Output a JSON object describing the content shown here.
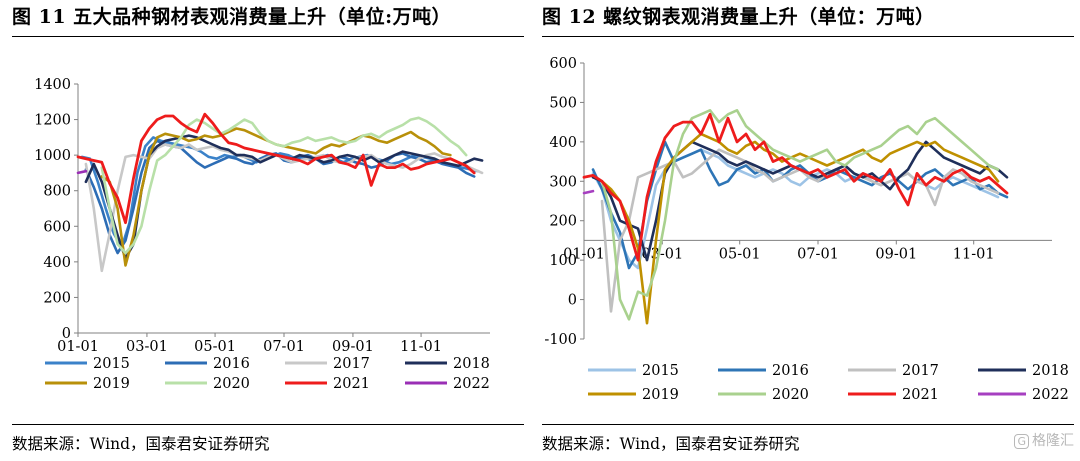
{
  "watermark": "格隆汇",
  "watermark_icon": "G",
  "source_note": "数据来源：Wind，国泰君安证券研究",
  "chart_data": [
    {
      "type": "line",
      "title": "图 11 五大品种钢材表观消费量上升（单位:万吨）",
      "xlabel": "",
      "ylabel": "",
      "ylim": [
        0,
        1400
      ],
      "yticks": [
        0,
        200,
        400,
        600,
        800,
        1000,
        1200,
        1400
      ],
      "xlim": [
        0,
        52
      ],
      "xticks": [
        {
          "x": 0,
          "label": "01-01"
        },
        {
          "x": 8.7,
          "label": "03-01"
        },
        {
          "x": 17.3,
          "label": "05-01"
        },
        {
          "x": 26,
          "label": "07-01"
        },
        {
          "x": 34.7,
          "label": "09-01"
        },
        {
          "x": 43.3,
          "label": "11-01"
        }
      ],
      "xaxis_value": 0,
      "legend_position": "bottom",
      "grid": false,
      "series": [
        {
          "name": "2015",
          "color": "#3b82c9",
          "width": 2.6,
          "x0": 0.5,
          "values": [
            990,
            980,
            850,
            700,
            560,
            480,
            620,
            900,
            1050,
            1100,
            1080,
            1070,
            1060,
            1050,
            1040,
            1020,
            990,
            980,
            1000,
            990,
            1000,
            980,
            960,
            980,
            990,
            1010,
            1000,
            980,
            990,
            970,
            990,
            1000,
            980,
            960,
            980,
            990,
            1000,
            980,
            970,
            950,
            960,
            980,
            1000,
            990,
            980,
            960,
            950,
            940,
            930,
            920,
            910
          ]
        },
        {
          "name": "2016",
          "color": "#2d6db5",
          "width": 2.6,
          "x0": 1,
          "values": [
            920,
            820,
            700,
            550,
            450,
            520,
            700,
            900,
            1040,
            1080,
            1060,
            1050,
            1040,
            1000,
            960,
            930,
            950,
            970,
            990,
            980,
            960,
            950,
            980,
            1000,
            1010,
            970,
            960,
            990,
            1000,
            980,
            950,
            960,
            990,
            980,
            960,
            950,
            930,
            940,
            970,
            1000,
            1010,
            990,
            980,
            960,
            970,
            950,
            940,
            930,
            900,
            880
          ]
        },
        {
          "name": "2017",
          "color": "#c8c8c8",
          "width": 2.6,
          "x0": 1,
          "values": [
            950,
            700,
            350,
            560,
            800,
            990,
            1000,
            990,
            980,
            1040,
            1060,
            1050,
            1040,
            1060,
            1030,
            1040,
            1050,
            1030,
            1020,
            1000,
            990,
            980,
            970,
            990,
            1000,
            980,
            960,
            970,
            980,
            990,
            1000,
            970,
            960,
            950,
            980,
            990,
            1000,
            970,
            950,
            940,
            930,
            950,
            980,
            1000,
            1010,
            990,
            980,
            960,
            940,
            920,
            900
          ]
        },
        {
          "name": "2018",
          "color": "#1f2f5a",
          "width": 2.6,
          "x0": 1,
          "values": [
            850,
            950,
            850,
            700,
            550,
            420,
            500,
            800,
            1000,
            1050,
            1080,
            1090,
            1100,
            1110,
            1100,
            1080,
            1060,
            1040,
            1030,
            1000,
            1000,
            990,
            960,
            980,
            1000,
            990,
            980,
            1000,
            990,
            980,
            960,
            970,
            990,
            1000,
            990,
            970,
            990,
            960,
            980,
            1000,
            1020,
            1010,
            1000,
            990,
            980,
            960,
            950,
            940,
            960,
            980,
            970
          ]
        },
        {
          "name": "2019",
          "color": "#b8900a",
          "width": 2.6,
          "x0": 3,
          "values": [
            880,
            850,
            700,
            380,
            550,
            800,
            1000,
            1100,
            1120,
            1110,
            1100,
            1080,
            1090,
            1110,
            1100,
            1110,
            1130,
            1150,
            1140,
            1120,
            1100,
            1080,
            1060,
            1050,
            1040,
            1030,
            1020,
            1010,
            1040,
            1060,
            1050,
            1070,
            1090,
            1110,
            1100,
            1080,
            1070,
            1090,
            1110,
            1130,
            1100,
            1080,
            1050,
            1010,
            1000
          ]
        },
        {
          "name": "2020",
          "color": "#b8e0a8",
          "width": 2.6,
          "x0": 3,
          "values": [
            930,
            700,
            500,
            450,
            500,
            600,
            800,
            970,
            1000,
            1050,
            1100,
            1170,
            1200,
            1180,
            1150,
            1120,
            1140,
            1170,
            1200,
            1180,
            1120,
            1080,
            1060,
            1050,
            1070,
            1080,
            1100,
            1080,
            1090,
            1100,
            1080,
            1070,
            1080,
            1110,
            1120,
            1100,
            1130,
            1150,
            1170,
            1200,
            1210,
            1190,
            1160,
            1120,
            1080,
            1050,
            1000
          ]
        },
        {
          "name": "2021",
          "color": "#ee1c1c",
          "width": 2.8,
          "x0": 0,
          "values": [
            990,
            980,
            970,
            960,
            840,
            760,
            620,
            870,
            1080,
            1150,
            1200,
            1220,
            1220,
            1180,
            1150,
            1130,
            1230,
            1180,
            1120,
            1070,
            1060,
            1040,
            1030,
            1020,
            1010,
            1000,
            990,
            980,
            970,
            950,
            980,
            990,
            1000,
            960,
            950,
            930,
            1000,
            830,
            950,
            930,
            930,
            950,
            920,
            930,
            950,
            960,
            970,
            980,
            960,
            940,
            900
          ]
        },
        {
          "name": "2022",
          "color": "#9a2fb5",
          "width": 2.6,
          "x0": 0,
          "values": [
            900,
            910
          ]
        }
      ]
    },
    {
      "type": "line",
      "title": "图 12 螺纹钢表观消费量上升（单位：万吨）",
      "xlabel": "",
      "ylabel": "",
      "ylim": [
        -100,
        600
      ],
      "yticks": [
        -100,
        0,
        100,
        200,
        300,
        400,
        500,
        600
      ],
      "xlim": [
        0,
        52
      ],
      "xticks": [
        {
          "x": 0,
          "label": "01-01"
        },
        {
          "x": 8.7,
          "label": "03-01"
        },
        {
          "x": 17.3,
          "label": "05-01"
        },
        {
          "x": 26,
          "label": "07-01"
        },
        {
          "x": 34.7,
          "label": "09-01"
        },
        {
          "x": 43.3,
          "label": "11-01"
        }
      ],
      "xaxis_value": 150,
      "legend_position": "bottom",
      "grid": false,
      "series": [
        {
          "name": "2015",
          "color": "#9dc3e6",
          "width": 2.6,
          "x0": 1,
          "values": [
            320,
            280,
            200,
            150,
            100,
            80,
            180,
            290,
            330,
            350,
            360,
            370,
            380,
            370,
            360,
            340,
            330,
            320,
            310,
            320,
            330,
            320,
            300,
            290,
            310,
            320,
            330,
            320,
            300,
            310,
            320,
            300,
            290,
            300,
            310,
            320,
            300,
            290,
            280,
            300,
            310,
            300,
            290,
            280,
            270,
            260
          ]
        },
        {
          "name": "2016",
          "color": "#2e75b6",
          "width": 2.6,
          "x0": 1,
          "values": [
            330,
            280,
            220,
            170,
            80,
            120,
            250,
            330,
            400,
            350,
            360,
            370,
            380,
            330,
            290,
            300,
            330,
            340,
            320,
            330,
            300,
            310,
            330,
            340,
            320,
            300,
            310,
            330,
            320,
            310,
            300,
            290,
            310,
            320,
            300,
            280,
            300,
            320,
            330,
            310,
            290,
            300,
            310,
            280,
            290,
            270,
            260
          ]
        },
        {
          "name": "2017",
          "color": "#c0c0c0",
          "width": 2.6,
          "x0": 2,
          "values": [
            250,
            -30,
            150,
            200,
            310,
            320,
            330,
            340,
            350,
            310,
            320,
            340,
            360,
            380,
            370,
            360,
            350,
            330,
            320,
            300,
            310,
            320,
            330,
            310,
            300,
            320,
            330,
            340,
            320,
            310,
            300,
            290,
            300,
            310,
            320,
            300,
            290,
            240,
            310,
            330,
            320,
            300,
            290,
            280,
            270
          ]
        },
        {
          "name": "2018",
          "color": "#1f2f5a",
          "width": 2.6,
          "x0": 1,
          "values": [
            310,
            300,
            260,
            200,
            190,
            180,
            100,
            200,
            320,
            360,
            380,
            400,
            390,
            380,
            370,
            350,
            340,
            350,
            340,
            330,
            320,
            330,
            340,
            330,
            320,
            310,
            320,
            330,
            340,
            320,
            310,
            320,
            300,
            280,
            310,
            330,
            370,
            400,
            380,
            360,
            350,
            340,
            330,
            320,
            340,
            330,
            310
          ]
        },
        {
          "name": "2019",
          "color": "#bf9000",
          "width": 2.6,
          "x0": 2,
          "values": [
            300,
            280,
            250,
            200,
            130,
            -60,
            150,
            330,
            360,
            380,
            400,
            420,
            410,
            400,
            380,
            370,
            390,
            400,
            380,
            370,
            350,
            360,
            370,
            360,
            350,
            340,
            350,
            360,
            370,
            380,
            360,
            350,
            370,
            380,
            390,
            400,
            390,
            400,
            380,
            370,
            360,
            350,
            340,
            330,
            300
          ]
        },
        {
          "name": "2020",
          "color": "#a9d18e",
          "width": 2.6,
          "x0": 2,
          "values": [
            300,
            220,
            0,
            -50,
            20,
            10,
            80,
            200,
            350,
            420,
            460,
            470,
            480,
            450,
            470,
            480,
            440,
            420,
            400,
            380,
            370,
            360,
            350,
            360,
            370,
            380,
            350,
            340,
            360,
            370,
            380,
            390,
            410,
            430,
            440,
            420,
            450,
            460,
            440,
            420,
            400,
            380,
            360,
            340,
            330
          ]
        },
        {
          "name": "2021",
          "color": "#ee1c1c",
          "width": 2.8,
          "x0": 0,
          "values": [
            310,
            315,
            300,
            270,
            250,
            180,
            100,
            260,
            350,
            410,
            440,
            450,
            450,
            420,
            470,
            400,
            460,
            400,
            420,
            380,
            400,
            350,
            360,
            340,
            330,
            320,
            330,
            310,
            320,
            330,
            300,
            320,
            310,
            300,
            330,
            280,
            240,
            320,
            290,
            310,
            300,
            320,
            330,
            310,
            300,
            310,
            290,
            270
          ]
        },
        {
          "name": "2022",
          "color": "#a63fc0",
          "width": 2.6,
          "x0": 0,
          "values": [
            270,
            275
          ]
        }
      ]
    }
  ]
}
